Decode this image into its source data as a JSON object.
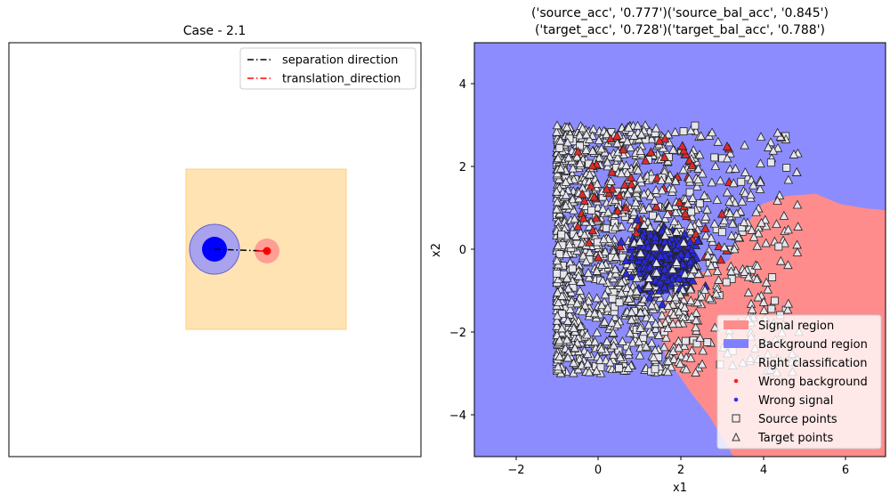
{
  "left_panel": {
    "title": "Case - 2.1",
    "legend": {
      "separation_label": "separation direction",
      "translation_label": "translation_direction"
    }
  },
  "right_panel": {
    "title_line1": "('source_acc', '0.777')('source_bal_acc', '0.845')",
    "title_line2": "('target_acc', '0.728')('target_bal_acc', '0.788')",
    "xlabel": "x1",
    "ylabel": "x2",
    "xticks": [
      "−2",
      "0",
      "2",
      "4",
      "6"
    ],
    "yticks": [
      "4",
      "2",
      "0",
      "−2",
      "−4"
    ],
    "legend": {
      "signal_region": "Signal region",
      "background_region": "Background region",
      "right_classification": "Right classification",
      "wrong_background": "Wrong background",
      "wrong_signal": "Wrong signal",
      "source_points": "Source points",
      "target_points": "Target points"
    }
  },
  "chart_data": [
    {
      "type": "scatter",
      "title": "Case - 2.1",
      "description_items": [
        {
          "name": "square region",
          "x0": -1.4,
          "x1": 1.4,
          "y0": -1.4,
          "y1": 1.4,
          "color": "#ffe0b0"
        },
        {
          "name": "background cluster",
          "cx": -0.9,
          "cy": 0.0,
          "r_inner": 0.22,
          "r_outer": 0.43,
          "color": "#0000ff"
        },
        {
          "name": "signal cluster",
          "cx": 0.0,
          "cy": -0.03,
          "r_inner": 0.07,
          "r_outer": 0.22,
          "color": "#ff0000"
        }
      ],
      "series": [
        {
          "name": "separation direction",
          "color": "#000000",
          "style": "dash-dot",
          "x": [
            -0.9,
            0.0
          ],
          "y": [
            0.0,
            -0.03
          ]
        },
        {
          "name": "translation_direction",
          "color": "#ff0000",
          "style": "dash-dot",
          "x": [
            -0.08,
            0.0
          ],
          "y": [
            -0.03,
            -0.03
          ]
        }
      ],
      "legend_position": "top-right",
      "xlim": [
        -4.5,
        2.7
      ],
      "ylim": [
        -3.6,
        3.6
      ]
    },
    {
      "type": "scatter",
      "title": "('source_acc', '0.777')('source_bal_acc', '0.845') ('target_acc', '0.728')('target_bal_acc', '0.788')",
      "xlabel": "x1",
      "ylabel": "x2",
      "xlim": [
        -3,
        7
      ],
      "ylim": [
        -5,
        5
      ],
      "xticks": [
        -2,
        0,
        2,
        4,
        6
      ],
      "yticks": [
        -4,
        -2,
        0,
        2,
        4
      ],
      "regions": [
        {
          "name": "Background region",
          "color": "#8c8cff"
        },
        {
          "name": "Signal region",
          "color": "#ff8c8c"
        }
      ],
      "boundary": [
        [
          3.3,
          -5
        ],
        [
          3.0,
          -4.5
        ],
        [
          2.7,
          -4.0
        ],
        [
          2.3,
          -3.5
        ],
        [
          1.95,
          -3.0
        ],
        [
          1.7,
          -2.7
        ],
        [
          1.6,
          -2.4
        ],
        [
          1.5,
          -1.9
        ],
        [
          1.6,
          -1.3
        ],
        [
          2.2,
          -0.7
        ],
        [
          3.2,
          -0.25
        ],
        [
          3.5,
          0.45
        ],
        [
          4.0,
          1.1
        ],
        [
          4.6,
          1.3
        ],
        [
          5.3,
          1.35
        ],
        [
          5.9,
          1.1
        ],
        [
          6.5,
          1.0
        ],
        [
          7.0,
          0.95
        ]
      ],
      "series": [
        {
          "name": "Target points (right classification)",
          "marker": "triangle",
          "color": "#e6e6f0",
          "count": 1450,
          "x_range": [
            -1.0,
            4.9
          ],
          "y_range": [
            -3.0,
            3.0
          ]
        },
        {
          "name": "Wrong signal",
          "marker": "triangle",
          "color": "#2020e0",
          "count": 420,
          "x_range": [
            0.5,
            4.0
          ],
          "y_range": [
            -2.2,
            1.6
          ]
        },
        {
          "name": "Wrong background",
          "marker": "triangle",
          "color": "#e02020",
          "count": 70,
          "x_range": [
            -0.5,
            3.2
          ],
          "y_range": [
            -0.3,
            2.8
          ]
        }
      ],
      "legend_position": "lower-right"
    }
  ]
}
